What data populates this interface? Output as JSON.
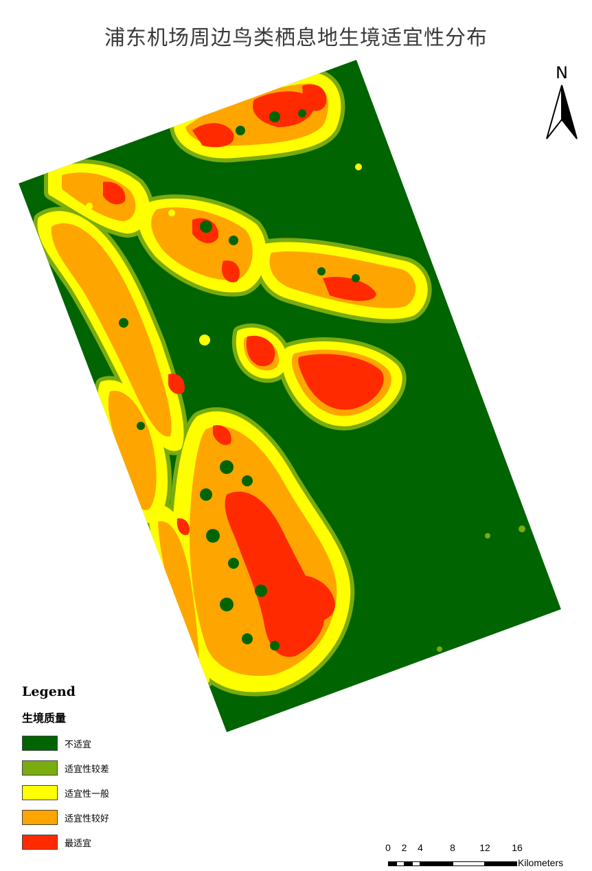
{
  "title": "浦东机场周边鸟类栖息地生境适宜性分布",
  "north_arrow": {
    "label": "N",
    "icon": "north-arrow-icon"
  },
  "legend": {
    "title": "Legend",
    "field": "生境质量",
    "items": [
      {
        "label": "不适宜",
        "color": "#006400"
      },
      {
        "label": "适宜性较差",
        "color": "#7aab0f"
      },
      {
        "label": "适宜性一般",
        "color": "#ffff00"
      },
      {
        "label": "适宜性较好",
        "color": "#ffa500"
      },
      {
        "label": "最适宜",
        "color": "#ff2a00"
      }
    ]
  },
  "scale_bar": {
    "ticks": [
      "0",
      "2",
      "4",
      "8",
      "12",
      "16"
    ],
    "unit": "Kilometers"
  }
}
